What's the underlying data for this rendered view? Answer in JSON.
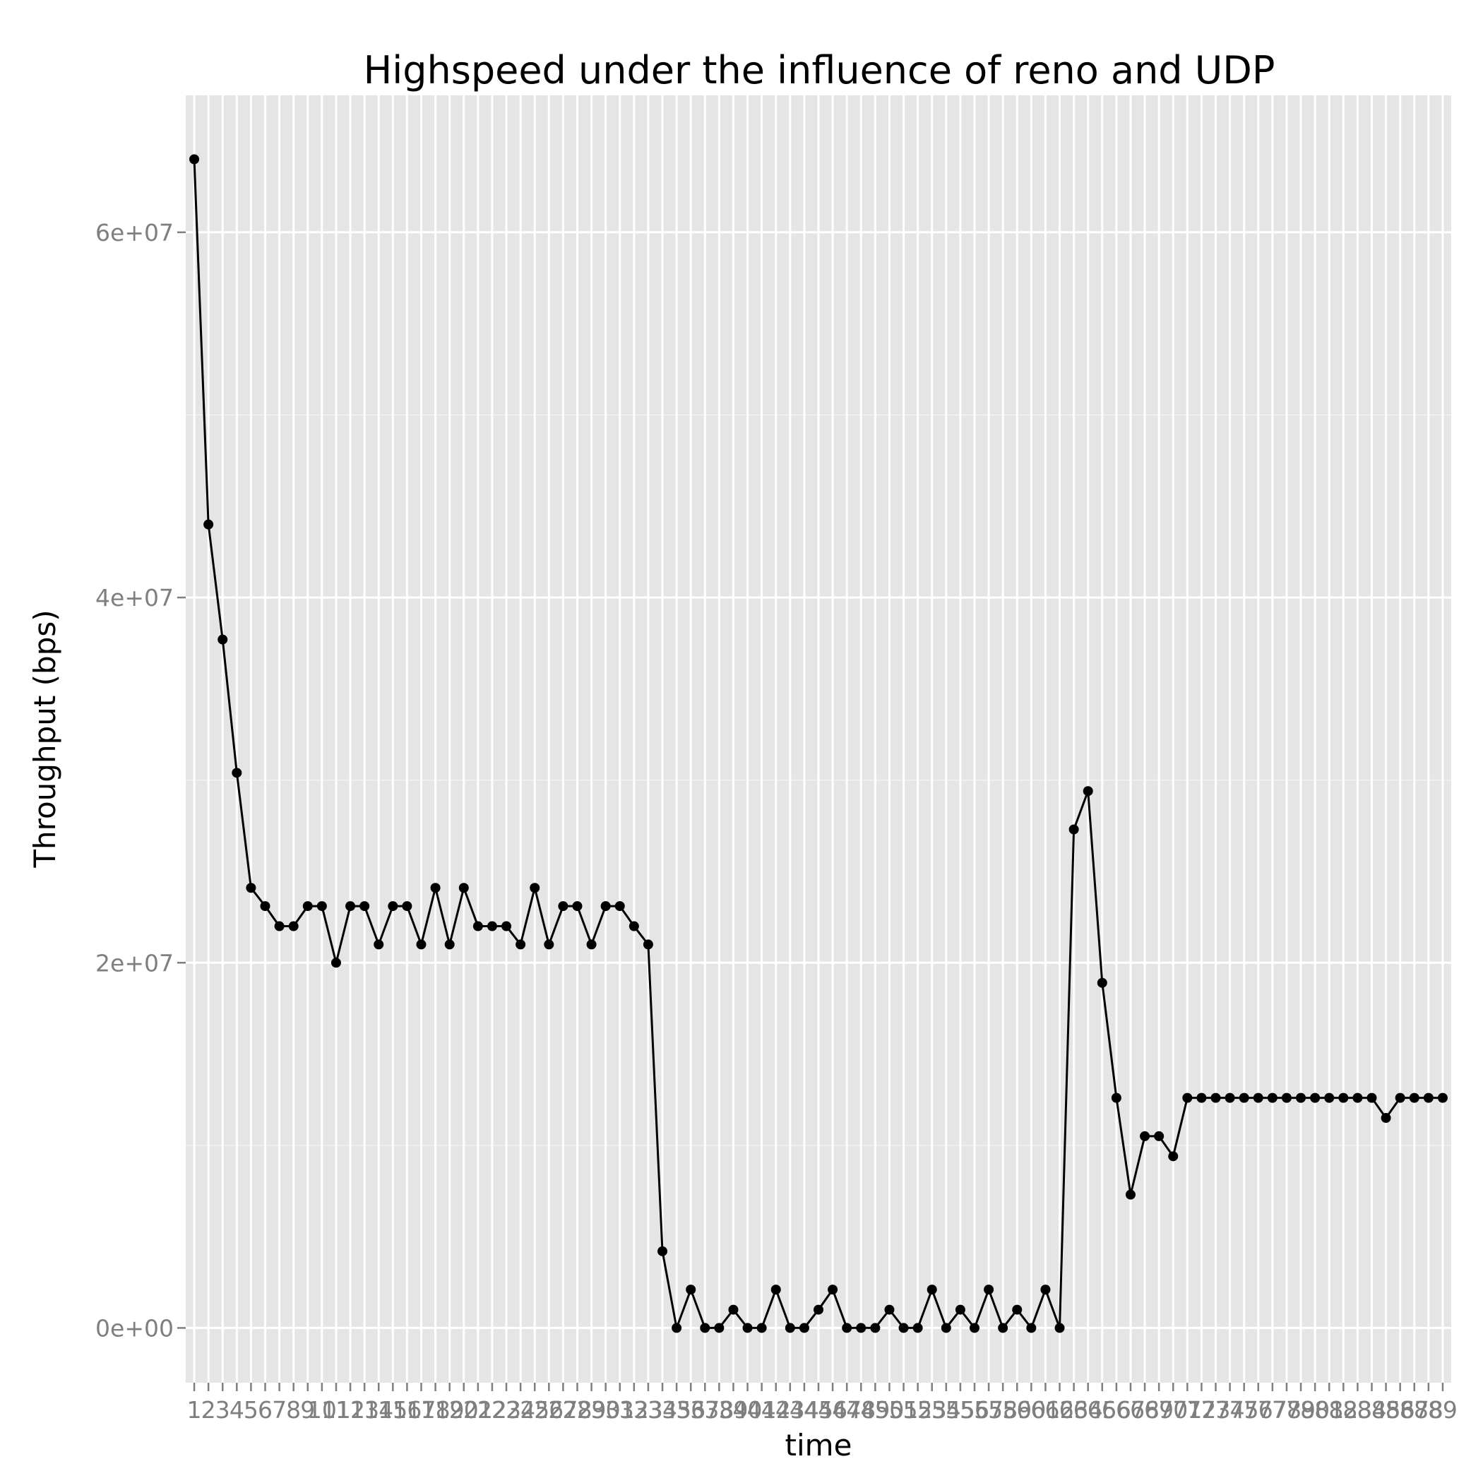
{
  "chart_data": {
    "type": "line",
    "title": "Highspeed under the influence of reno and UDP",
    "xlabel": "time",
    "ylabel": "Throughput (bps)",
    "ylim": [
      -3000000,
      67500000
    ],
    "y_ticks": [
      0,
      20000000,
      40000000,
      60000000
    ],
    "y_tick_labels": [
      "0e+00",
      "2e+07",
      "4e+07",
      "6e+07"
    ],
    "grid": true,
    "x": [
      1,
      2,
      3,
      4,
      5,
      6,
      7,
      8,
      9,
      10,
      11,
      12,
      13,
      14,
      15,
      16,
      17,
      18,
      19,
      20,
      21,
      22,
      23,
      24,
      25,
      26,
      27,
      28,
      29,
      30,
      31,
      32,
      33,
      34,
      35,
      36,
      37,
      38,
      39,
      40,
      41,
      42,
      43,
      44,
      45,
      46,
      47,
      48,
      49,
      50,
      51,
      52,
      53,
      54,
      55,
      56,
      57,
      58,
      59,
      60,
      61,
      62,
      63,
      64,
      65,
      66,
      67,
      68,
      69,
      70,
      71,
      72,
      73,
      74,
      75,
      76,
      77,
      78,
      79,
      80,
      81,
      82,
      83,
      84,
      85,
      86,
      87,
      88,
      89
    ],
    "series": [
      {
        "values": [
          64000000,
          44000000,
          37700000,
          30400000,
          24100000,
          23100000,
          22000000,
          22000000,
          23100000,
          23100000,
          20000000,
          23100000,
          23100000,
          21000000,
          23100000,
          23100000,
          21000000,
          24100000,
          21000000,
          24100000,
          22000000,
          22000000,
          22000000,
          21000000,
          24100000,
          21000000,
          23100000,
          23100000,
          21000000,
          23100000,
          23100000,
          22000000,
          21000000,
          4200000,
          0,
          2100000,
          0,
          0,
          1000000,
          0,
          0,
          2100000,
          0,
          0,
          1000000,
          2100000,
          0,
          0,
          0,
          1000000,
          0,
          0,
          2100000,
          0,
          1000000,
          0,
          2100000,
          0,
          1000000,
          0,
          2100000,
          0,
          27300000,
          29400000,
          18900000,
          12600000,
          7300000,
          10500000,
          10500000,
          9400000,
          12600000,
          12600000,
          12600000,
          12600000,
          12600000,
          12600000,
          12600000,
          12600000,
          12600000,
          12600000,
          12600000,
          12600000,
          12600000,
          12600000,
          11500000,
          12600000,
          12600000,
          12600000,
          12600000
        ]
      }
    ]
  }
}
